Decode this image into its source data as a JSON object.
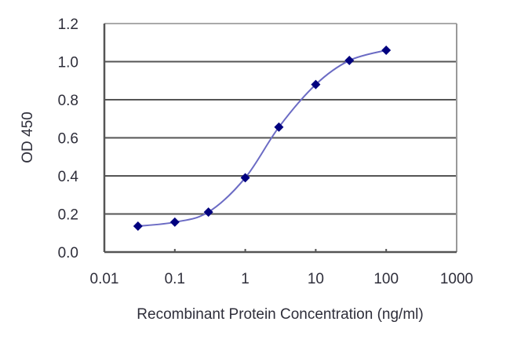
{
  "chart_data": {
    "type": "line",
    "title": "",
    "xlabel": "Recombinant Protein Concentration (ng/ml)",
    "ylabel": "OD 450",
    "xscale": "log",
    "xlim": [
      0.01,
      1000
    ],
    "ylim": [
      0.0,
      1.2
    ],
    "x_ticks": [
      "0.01",
      "0.1",
      "1",
      "10",
      "100",
      "1000"
    ],
    "y_ticks": [
      "0.0",
      "0.2",
      "0.4",
      "0.6",
      "0.8",
      "1.0",
      "1.2"
    ],
    "grid": {
      "horizontal": true,
      "vertical": false
    },
    "legend": null,
    "series": [
      {
        "name": "OD 450",
        "x": [
          0.03,
          0.1,
          0.3,
          1,
          3,
          10,
          30,
          100
        ],
        "values": [
          0.136,
          0.157,
          0.21,
          0.39,
          0.656,
          0.88,
          1.006,
          1.06
        ],
        "marker": "diamond",
        "marker_color": "#00007f",
        "line_color": "#6b6bc4",
        "smooth": true
      }
    ]
  },
  "colors": {
    "background": "#ffffff",
    "gridline": "#555555",
    "axis": "#555555",
    "text": "#2e2e3a"
  }
}
